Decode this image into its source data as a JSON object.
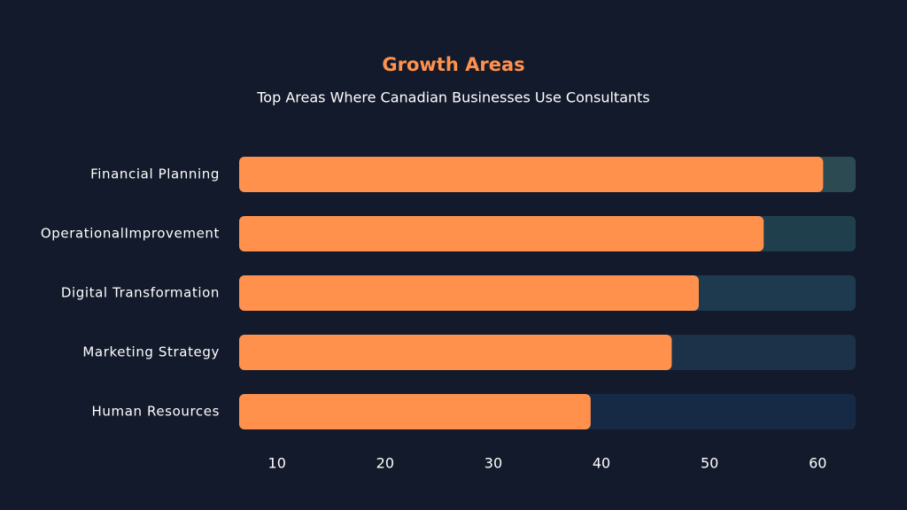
{
  "chart_data": {
    "type": "bar",
    "orientation": "horizontal",
    "title": "Growth Areas",
    "subtitle": "Top Areas Where Canadian Businesses Use Consultants",
    "categories": [
      "Financial Planning",
      "OperationalImprovement",
      "Digital Transformation",
      "Marketing Strategy",
      "Human Resources"
    ],
    "values": [
      60.5,
      55,
      49,
      46.5,
      39
    ],
    "color": "#ff914d",
    "track_colors": [
      "#2b4a52",
      "#1f3f4c",
      "#1d3a4e",
      "#1b3249",
      "#172a45"
    ],
    "xlim": [
      6.5,
      63.5
    ],
    "xticks": [
      10,
      20,
      30,
      40,
      50,
      60
    ],
    "grid": false
  }
}
